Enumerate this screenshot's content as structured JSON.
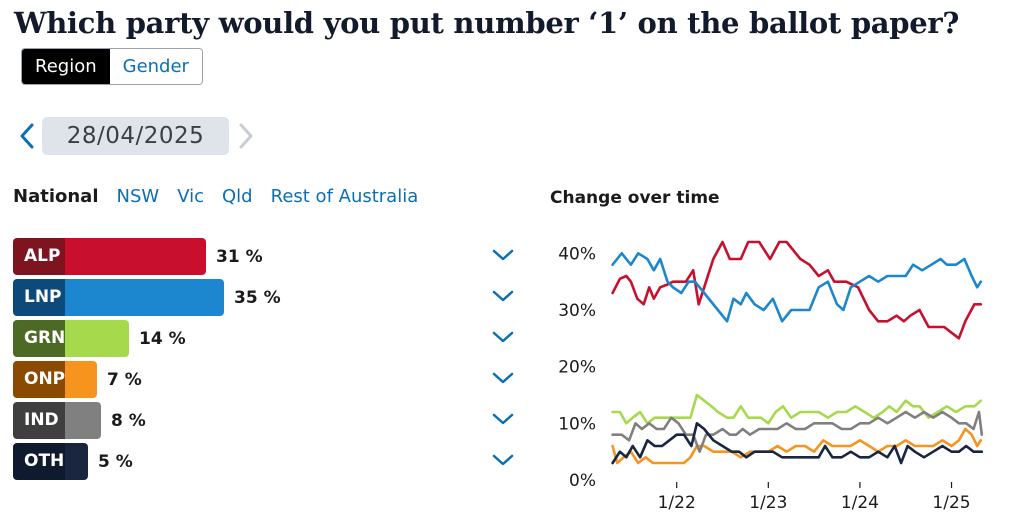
{
  "title": "Which party would you put number ‘1’ on the ballot paper?",
  "view_toggle": {
    "options": [
      "Region",
      "Gender"
    ],
    "selected": "Region"
  },
  "date_nav": {
    "date": "28/04/2025",
    "prev_icon": "chevron-left-icon",
    "next_icon": "chevron-right-icon"
  },
  "region_tabs": {
    "items": [
      "National",
      "NSW",
      "Vic",
      "Qld",
      "Rest of Australia"
    ],
    "selected": "National"
  },
  "parties": [
    {
      "code": "ALP",
      "value": 31,
      "value_label": "31 %",
      "label_color": "#7d1420",
      "bar_color": "#c8102e"
    },
    {
      "code": "LNP",
      "value": 35,
      "value_label": "35 %",
      "label_color": "#0d4a7c",
      "bar_color": "#1c87cf"
    },
    {
      "code": "GRN",
      "value": 14,
      "value_label": "14 %",
      "label_color": "#4c6a23",
      "bar_color": "#a6d94b"
    },
    {
      "code": "ONP",
      "value": 7,
      "value_label": "7 %",
      "label_color": "#8a4a00",
      "bar_color": "#f7941d"
    },
    {
      "code": "IND",
      "value": 8,
      "value_label": "8 %",
      "label_color": "#3f3f3f",
      "bar_color": "#808080"
    },
    {
      "code": "OTH",
      "value": 5,
      "value_label": "5 %",
      "label_color": "#0f1a2e",
      "bar_color": "#1a2540"
    }
  ],
  "expand_icon": "chevron-down-icon",
  "chart_data": {
    "type": "line",
    "title": "Change over time",
    "xlabel": "",
    "ylabel": "",
    "x_range": [
      2021.25,
      2025.42
    ],
    "ylim": [
      0,
      45
    ],
    "y_ticks": [
      0,
      10,
      20,
      30,
      40
    ],
    "y_tick_labels": [
      "0%",
      "10%",
      "20%",
      "30%",
      "40%"
    ],
    "x_ticks": [
      2022.0,
      2023.0,
      2024.0,
      2025.0
    ],
    "x_tick_labels": [
      "1/22",
      "1/23",
      "1/24",
      "1/25"
    ],
    "grid": false,
    "legend": "none",
    "series": [
      {
        "key": "ALP",
        "color": "#c8102e",
        "points": [
          [
            2021.3,
            33
          ],
          [
            2021.38,
            35.5
          ],
          [
            2021.45,
            36
          ],
          [
            2021.5,
            35
          ],
          [
            2021.57,
            32
          ],
          [
            2021.64,
            31
          ],
          [
            2021.7,
            34
          ],
          [
            2021.75,
            32
          ],
          [
            2021.82,
            34
          ],
          [
            2021.9,
            34.5
          ],
          [
            2021.96,
            35
          ],
          [
            2022.02,
            35
          ],
          [
            2022.1,
            35
          ],
          [
            2022.18,
            37
          ],
          [
            2022.24,
            31
          ],
          [
            2022.3,
            34
          ],
          [
            2022.4,
            39
          ],
          [
            2022.5,
            42
          ],
          [
            2022.58,
            39
          ],
          [
            2022.7,
            39
          ],
          [
            2022.78,
            42
          ],
          [
            2022.9,
            42
          ],
          [
            2023.02,
            39
          ],
          [
            2023.12,
            42
          ],
          [
            2023.2,
            42
          ],
          [
            2023.35,
            39
          ],
          [
            2023.45,
            38
          ],
          [
            2023.55,
            36
          ],
          [
            2023.65,
            37
          ],
          [
            2023.72,
            35
          ],
          [
            2023.85,
            35
          ],
          [
            2023.98,
            34
          ],
          [
            2024.1,
            30
          ],
          [
            2024.2,
            28
          ],
          [
            2024.3,
            28
          ],
          [
            2024.4,
            29
          ],
          [
            2024.48,
            28
          ],
          [
            2024.55,
            29
          ],
          [
            2024.65,
            30
          ],
          [
            2024.75,
            27
          ],
          [
            2024.85,
            27
          ],
          [
            2024.92,
            27
          ],
          [
            2025.0,
            26
          ],
          [
            2025.08,
            25
          ],
          [
            2025.15,
            28
          ],
          [
            2025.25,
            31
          ],
          [
            2025.32,
            31
          ]
        ]
      },
      {
        "key": "LNP",
        "color": "#1c87cf",
        "points": [
          [
            2021.3,
            38
          ],
          [
            2021.4,
            40
          ],
          [
            2021.5,
            38
          ],
          [
            2021.58,
            40
          ],
          [
            2021.68,
            39
          ],
          [
            2021.75,
            37
          ],
          [
            2021.82,
            39
          ],
          [
            2021.9,
            35
          ],
          [
            2021.96,
            34
          ],
          [
            2022.05,
            33
          ],
          [
            2022.13,
            35
          ],
          [
            2022.2,
            35
          ],
          [
            2022.3,
            33
          ],
          [
            2022.45,
            30
          ],
          [
            2022.55,
            28
          ],
          [
            2022.62,
            32
          ],
          [
            2022.7,
            31
          ],
          [
            2022.76,
            33
          ],
          [
            2022.85,
            31
          ],
          [
            2022.95,
            30
          ],
          [
            2023.05,
            32
          ],
          [
            2023.15,
            28
          ],
          [
            2023.25,
            30
          ],
          [
            2023.35,
            30
          ],
          [
            2023.45,
            30
          ],
          [
            2023.55,
            34
          ],
          [
            2023.65,
            35
          ],
          [
            2023.75,
            31
          ],
          [
            2023.82,
            30
          ],
          [
            2023.9,
            34
          ],
          [
            2024.0,
            35
          ],
          [
            2024.1,
            36
          ],
          [
            2024.2,
            35
          ],
          [
            2024.3,
            36
          ],
          [
            2024.4,
            36
          ],
          [
            2024.5,
            36
          ],
          [
            2024.58,
            38
          ],
          [
            2024.68,
            37
          ],
          [
            2024.78,
            38
          ],
          [
            2024.88,
            39
          ],
          [
            2024.95,
            38
          ],
          [
            2025.05,
            38
          ],
          [
            2025.14,
            39
          ],
          [
            2025.22,
            36
          ],
          [
            2025.28,
            34
          ],
          [
            2025.32,
            35
          ]
        ]
      },
      {
        "key": "GRN",
        "color": "#a6d94b",
        "points": [
          [
            2021.3,
            12
          ],
          [
            2021.38,
            12
          ],
          [
            2021.45,
            10
          ],
          [
            2021.52,
            11
          ],
          [
            2021.6,
            12
          ],
          [
            2021.68,
            10
          ],
          [
            2021.76,
            11
          ],
          [
            2021.84,
            11
          ],
          [
            2021.92,
            11
          ],
          [
            2022.0,
            11
          ],
          [
            2022.08,
            11
          ],
          [
            2022.15,
            11
          ],
          [
            2022.22,
            15
          ],
          [
            2022.3,
            14
          ],
          [
            2022.38,
            13
          ],
          [
            2022.45,
            12
          ],
          [
            2022.55,
            11
          ],
          [
            2022.62,
            11
          ],
          [
            2022.7,
            13
          ],
          [
            2022.78,
            11
          ],
          [
            2022.85,
            11
          ],
          [
            2022.92,
            11
          ],
          [
            2023.0,
            10
          ],
          [
            2023.08,
            12
          ],
          [
            2023.16,
            13
          ],
          [
            2023.25,
            11
          ],
          [
            2023.35,
            12
          ],
          [
            2023.45,
            12
          ],
          [
            2023.55,
            12
          ],
          [
            2023.65,
            11
          ],
          [
            2023.75,
            12
          ],
          [
            2023.85,
            12
          ],
          [
            2023.95,
            13
          ],
          [
            2024.05,
            12
          ],
          [
            2024.15,
            11
          ],
          [
            2024.25,
            12
          ],
          [
            2024.32,
            13
          ],
          [
            2024.4,
            12
          ],
          [
            2024.5,
            14
          ],
          [
            2024.58,
            13
          ],
          [
            2024.65,
            13
          ],
          [
            2024.75,
            11
          ],
          [
            2024.85,
            12
          ],
          [
            2024.95,
            13
          ],
          [
            2025.05,
            12
          ],
          [
            2025.15,
            13
          ],
          [
            2025.25,
            13
          ],
          [
            2025.32,
            14
          ]
        ]
      },
      {
        "key": "ONP",
        "color": "#f7941d",
        "points": [
          [
            2021.3,
            6
          ],
          [
            2021.35,
            3
          ],
          [
            2021.42,
            4
          ],
          [
            2021.5,
            5
          ],
          [
            2021.58,
            3
          ],
          [
            2021.66,
            4
          ],
          [
            2021.74,
            3
          ],
          [
            2021.82,
            3
          ],
          [
            2021.9,
            3
          ],
          [
            2022.0,
            3
          ],
          [
            2022.08,
            3
          ],
          [
            2022.15,
            4
          ],
          [
            2022.22,
            6
          ],
          [
            2022.3,
            6
          ],
          [
            2022.4,
            5
          ],
          [
            2022.5,
            5
          ],
          [
            2022.6,
            5
          ],
          [
            2022.7,
            4
          ],
          [
            2022.8,
            5
          ],
          [
            2022.9,
            5
          ],
          [
            2023.0,
            5
          ],
          [
            2023.1,
            6
          ],
          [
            2023.2,
            5
          ],
          [
            2023.3,
            6
          ],
          [
            2023.4,
            6
          ],
          [
            2023.5,
            5
          ],
          [
            2023.6,
            7
          ],
          [
            2023.7,
            6
          ],
          [
            2023.8,
            6
          ],
          [
            2023.9,
            6
          ],
          [
            2024.0,
            7
          ],
          [
            2024.1,
            6
          ],
          [
            2024.2,
            5
          ],
          [
            2024.3,
            6
          ],
          [
            2024.4,
            6
          ],
          [
            2024.5,
            7
          ],
          [
            2024.6,
            6
          ],
          [
            2024.7,
            6
          ],
          [
            2024.8,
            6
          ],
          [
            2024.9,
            7
          ],
          [
            2025.0,
            6
          ],
          [
            2025.08,
            7
          ],
          [
            2025.15,
            9
          ],
          [
            2025.22,
            8
          ],
          [
            2025.28,
            6
          ],
          [
            2025.32,
            7
          ]
        ]
      },
      {
        "key": "IND",
        "color": "#808080",
        "points": [
          [
            2021.3,
            8
          ],
          [
            2021.4,
            8
          ],
          [
            2021.48,
            7
          ],
          [
            2021.55,
            10
          ],
          [
            2021.62,
            9
          ],
          [
            2021.7,
            10
          ],
          [
            2021.78,
            9
          ],
          [
            2021.86,
            9
          ],
          [
            2021.94,
            11
          ],
          [
            2022.02,
            10
          ],
          [
            2022.1,
            8
          ],
          [
            2022.18,
            8
          ],
          [
            2022.25,
            5
          ],
          [
            2022.32,
            8
          ],
          [
            2022.4,
            8
          ],
          [
            2022.5,
            9
          ],
          [
            2022.58,
            8
          ],
          [
            2022.65,
            8
          ],
          [
            2022.72,
            9
          ],
          [
            2022.8,
            8
          ],
          [
            2022.9,
            9
          ],
          [
            2023.0,
            9
          ],
          [
            2023.1,
            9
          ],
          [
            2023.2,
            10
          ],
          [
            2023.3,
            9
          ],
          [
            2023.4,
            9
          ],
          [
            2023.5,
            10
          ],
          [
            2023.6,
            10
          ],
          [
            2023.7,
            10
          ],
          [
            2023.8,
            9
          ],
          [
            2023.9,
            9
          ],
          [
            2024.0,
            10
          ],
          [
            2024.1,
            10
          ],
          [
            2024.2,
            11
          ],
          [
            2024.3,
            10
          ],
          [
            2024.4,
            11
          ],
          [
            2024.5,
            12
          ],
          [
            2024.6,
            11
          ],
          [
            2024.7,
            12
          ],
          [
            2024.8,
            11
          ],
          [
            2024.9,
            12
          ],
          [
            2025.0,
            11
          ],
          [
            2025.08,
            10
          ],
          [
            2025.16,
            10
          ],
          [
            2025.24,
            9
          ],
          [
            2025.3,
            12
          ],
          [
            2025.33,
            8
          ]
        ]
      },
      {
        "key": "OTH",
        "color": "#1a2540",
        "points": [
          [
            2021.3,
            3
          ],
          [
            2021.38,
            5
          ],
          [
            2021.45,
            4
          ],
          [
            2021.52,
            6
          ],
          [
            2021.6,
            4
          ],
          [
            2021.68,
            7
          ],
          [
            2021.76,
            6
          ],
          [
            2021.84,
            6
          ],
          [
            2021.92,
            7
          ],
          [
            2022.0,
            8
          ],
          [
            2022.08,
            8
          ],
          [
            2022.16,
            6
          ],
          [
            2022.22,
            10
          ],
          [
            2022.3,
            9
          ],
          [
            2022.4,
            7
          ],
          [
            2022.5,
            6
          ],
          [
            2022.6,
            5
          ],
          [
            2022.68,
            5
          ],
          [
            2022.76,
            4
          ],
          [
            2022.85,
            5
          ],
          [
            2022.95,
            5
          ],
          [
            2023.05,
            5
          ],
          [
            2023.15,
            4
          ],
          [
            2023.25,
            4
          ],
          [
            2023.35,
            4
          ],
          [
            2023.45,
            4
          ],
          [
            2023.55,
            4
          ],
          [
            2023.62,
            6
          ],
          [
            2023.7,
            4
          ],
          [
            2023.8,
            4
          ],
          [
            2023.9,
            5
          ],
          [
            2024.0,
            4
          ],
          [
            2024.1,
            4
          ],
          [
            2024.2,
            5
          ],
          [
            2024.3,
            4
          ],
          [
            2024.38,
            6
          ],
          [
            2024.45,
            3
          ],
          [
            2024.52,
            6
          ],
          [
            2024.6,
            5
          ],
          [
            2024.7,
            4
          ],
          [
            2024.8,
            5
          ],
          [
            2024.9,
            6
          ],
          [
            2025.0,
            5
          ],
          [
            2025.08,
            5
          ],
          [
            2025.16,
            6
          ],
          [
            2025.24,
            5
          ],
          [
            2025.33,
            5
          ]
        ]
      }
    ]
  }
}
